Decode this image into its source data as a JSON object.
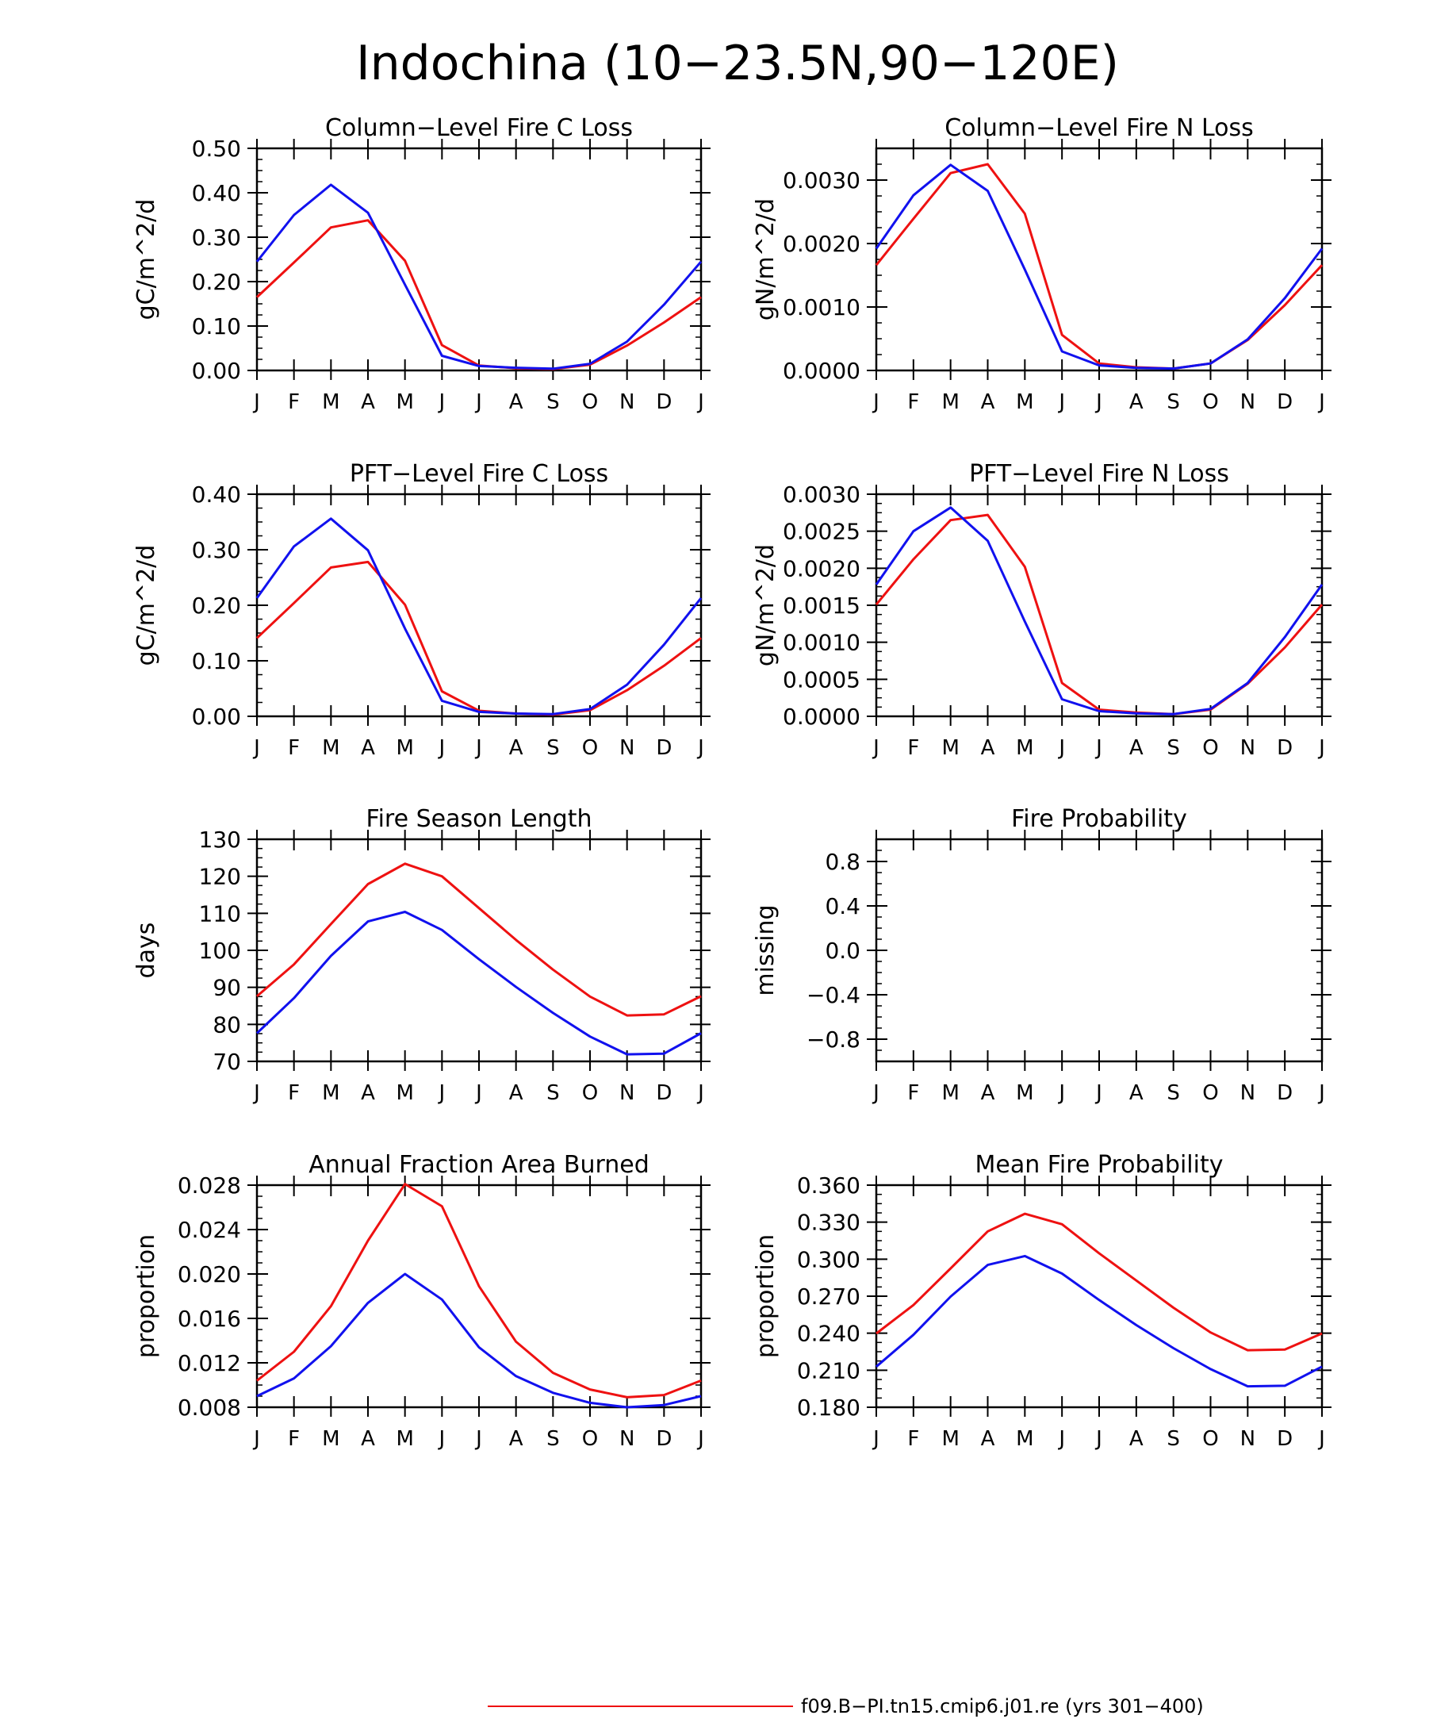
{
  "figure_title": "Indochina (10-23.5N,90-120E)",
  "colors": {
    "red_series": "#ee1111",
    "blue_series": "#1111ee",
    "axis": "#000000"
  },
  "months": [
    "J",
    "F",
    "M",
    "A",
    "M",
    "J",
    "J",
    "A",
    "S",
    "O",
    "N",
    "D",
    "J"
  ],
  "legend": {
    "line_color": "#ee1111",
    "label": "f09.B-PI.tn15.cmip6.j01.re (yrs 301-400)"
  },
  "chart_data": [
    {
      "type": "line",
      "title": "Column-Level Fire C Loss",
      "ylabel": "gC/m^2/d",
      "ylim": [
        0,
        0.5
      ],
      "yticks": [
        "0.00",
        "0.10",
        "0.20",
        "0.30",
        "0.40",
        "0.50"
      ],
      "categories": [
        "J",
        "F",
        "M",
        "A",
        "M",
        "J",
        "J",
        "A",
        "S",
        "O",
        "N",
        "D",
        "J"
      ],
      "series": [
        {
          "color": "#ee1111",
          "values": [
            0.165,
            0.243,
            0.322,
            0.338,
            0.247,
            0.057,
            0.011,
            0.005,
            0.003,
            0.013,
            0.056,
            0.108,
            0.165
          ]
        },
        {
          "color": "#1111ee",
          "values": [
            0.245,
            0.35,
            0.418,
            0.355,
            0.193,
            0.033,
            0.01,
            0.006,
            0.004,
            0.015,
            0.065,
            0.148,
            0.245
          ]
        }
      ]
    },
    {
      "type": "line",
      "title": "Column-Level Fire N Loss",
      "ylabel": "gN/m^2/d",
      "ylim": [
        0,
        0.0035
      ],
      "yticks": [
        "0.0000",
        "0.0010",
        "0.0020",
        "0.0030"
      ],
      "categories": [
        "J",
        "F",
        "M",
        "A",
        "M",
        "J",
        "J",
        "A",
        "S",
        "O",
        "N",
        "D",
        "J"
      ],
      "series": [
        {
          "color": "#ee1111",
          "values": [
            0.00166,
            0.00239,
            0.00311,
            0.00325,
            0.00247,
            0.00056,
            0.00011,
            5e-05,
            3e-05,
            0.00011,
            0.00048,
            0.00103,
            0.00166
          ]
        },
        {
          "color": "#1111ee",
          "values": [
            0.00192,
            0.00276,
            0.00324,
            0.00283,
            0.00159,
            0.0003,
            8e-05,
            4e-05,
            3e-05,
            0.00011,
            0.00049,
            0.00114,
            0.00192
          ]
        }
      ]
    },
    {
      "type": "line",
      "title": "PFT-Level Fire C Loss",
      "ylabel": "gC/m^2/d",
      "ylim": [
        0,
        0.4
      ],
      "yticks": [
        "0.00",
        "0.10",
        "0.20",
        "0.30",
        "0.40"
      ],
      "categories": [
        "J",
        "F",
        "M",
        "A",
        "M",
        "J",
        "J",
        "A",
        "S",
        "O",
        "N",
        "D",
        "J"
      ],
      "series": [
        {
          "color": "#ee1111",
          "values": [
            0.141,
            0.204,
            0.268,
            0.278,
            0.201,
            0.045,
            0.01,
            0.005,
            0.003,
            0.011,
            0.047,
            0.091,
            0.141
          ]
        },
        {
          "color": "#1111ee",
          "values": [
            0.213,
            0.306,
            0.356,
            0.299,
            0.158,
            0.028,
            0.008,
            0.005,
            0.004,
            0.013,
            0.057,
            0.129,
            0.213
          ]
        }
      ]
    },
    {
      "type": "line",
      "title": "PFT-Level Fire N Loss",
      "ylabel": "gN/m^2/d",
      "ylim": [
        0,
        0.003
      ],
      "yticks": [
        "0.0000",
        "0.0005",
        "0.0010",
        "0.0015",
        "0.0020",
        "0.0025",
        "0.0030"
      ],
      "categories": [
        "J",
        "F",
        "M",
        "A",
        "M",
        "J",
        "J",
        "A",
        "S",
        "O",
        "N",
        "D",
        "J"
      ],
      "series": [
        {
          "color": "#ee1111",
          "values": [
            0.00151,
            0.00212,
            0.00265,
            0.00272,
            0.00202,
            0.00045,
            9e-05,
            5e-05,
            3e-05,
            9e-05,
            0.00044,
            0.00093,
            0.00151
          ]
        },
        {
          "color": "#1111ee",
          "values": [
            0.00178,
            0.0025,
            0.00282,
            0.00237,
            0.00128,
            0.00023,
            7e-05,
            4e-05,
            3e-05,
            0.0001,
            0.00045,
            0.00107,
            0.00178
          ]
        }
      ]
    },
    {
      "type": "line",
      "title": "Fire Season Length",
      "ylabel": "days",
      "ylim": [
        70,
        130
      ],
      "yticks": [
        "70",
        "80",
        "90",
        "100",
        "110",
        "120",
        "130"
      ],
      "categories": [
        "J",
        "F",
        "M",
        "A",
        "M",
        "J",
        "J",
        "A",
        "S",
        "O",
        "N",
        "D",
        "J"
      ],
      "series": [
        {
          "color": "#ee1111",
          "values": [
            87.6,
            96.2,
            107.1,
            117.9,
            123.4,
            120.0,
            111.4,
            102.8,
            94.8,
            87.5,
            82.4,
            82.7,
            87.6
          ]
        },
        {
          "color": "#1111ee",
          "values": [
            77.6,
            87.1,
            98.5,
            107.8,
            110.4,
            105.5,
            97.6,
            90.1,
            83.1,
            76.7,
            71.9,
            72.1,
            77.6
          ]
        }
      ]
    },
    {
      "type": "line",
      "title": "Fire Probability",
      "ylabel": "missing",
      "ylim": [
        -1,
        1
      ],
      "yticks": [
        "-0.8",
        "-0.4",
        "0.0",
        "0.4",
        "0.8"
      ],
      "categories": [
        "J",
        "F",
        "M",
        "A",
        "M",
        "J",
        "J",
        "A",
        "S",
        "O",
        "N",
        "D",
        "J"
      ],
      "series": []
    },
    {
      "type": "line",
      "title": "Annual Fraction Area Burned",
      "ylabel": "proportion",
      "ylim": [
        0.008,
        0.028
      ],
      "yticks": [
        "0.008",
        "0.012",
        "0.016",
        "0.020",
        "0.024",
        "0.028"
      ],
      "categories": [
        "J",
        "F",
        "M",
        "A",
        "M",
        "J",
        "J",
        "A",
        "S",
        "O",
        "N",
        "D",
        "J"
      ],
      "series": [
        {
          "color": "#ee1111",
          "values": [
            0.0104,
            0.013,
            0.0171,
            0.023,
            0.0281,
            0.0261,
            0.0189,
            0.0139,
            0.0111,
            0.0096,
            0.0089,
            0.0091,
            0.0104
          ]
        },
        {
          "color": "#1111ee",
          "values": [
            0.009,
            0.0106,
            0.0135,
            0.0174,
            0.02,
            0.0177,
            0.0134,
            0.0108,
            0.0093,
            0.0084,
            0.008,
            0.0082,
            0.009
          ]
        }
      ]
    },
    {
      "type": "line",
      "title": "Mean Fire Probability",
      "ylabel": "proportion",
      "ylim": [
        0.18,
        0.36
      ],
      "yticks": [
        "0.180",
        "0.210",
        "0.240",
        "0.270",
        "0.300",
        "0.330",
        "0.360"
      ],
      "categories": [
        "J",
        "F",
        "M",
        "A",
        "M",
        "J",
        "J",
        "A",
        "S",
        "O",
        "N",
        "D",
        "J"
      ],
      "series": [
        {
          "color": "#ee1111",
          "values": [
            0.2398,
            0.2628,
            0.2925,
            0.3225,
            0.3368,
            0.3283,
            0.3048,
            0.2827,
            0.2607,
            0.2406,
            0.2262,
            0.2268,
            0.2398
          ]
        },
        {
          "color": "#1111ee",
          "values": [
            0.2129,
            0.2387,
            0.2697,
            0.2953,
            0.3025,
            0.2883,
            0.2669,
            0.2466,
            0.2279,
            0.2109,
            0.197,
            0.1974,
            0.2129
          ]
        }
      ]
    }
  ]
}
